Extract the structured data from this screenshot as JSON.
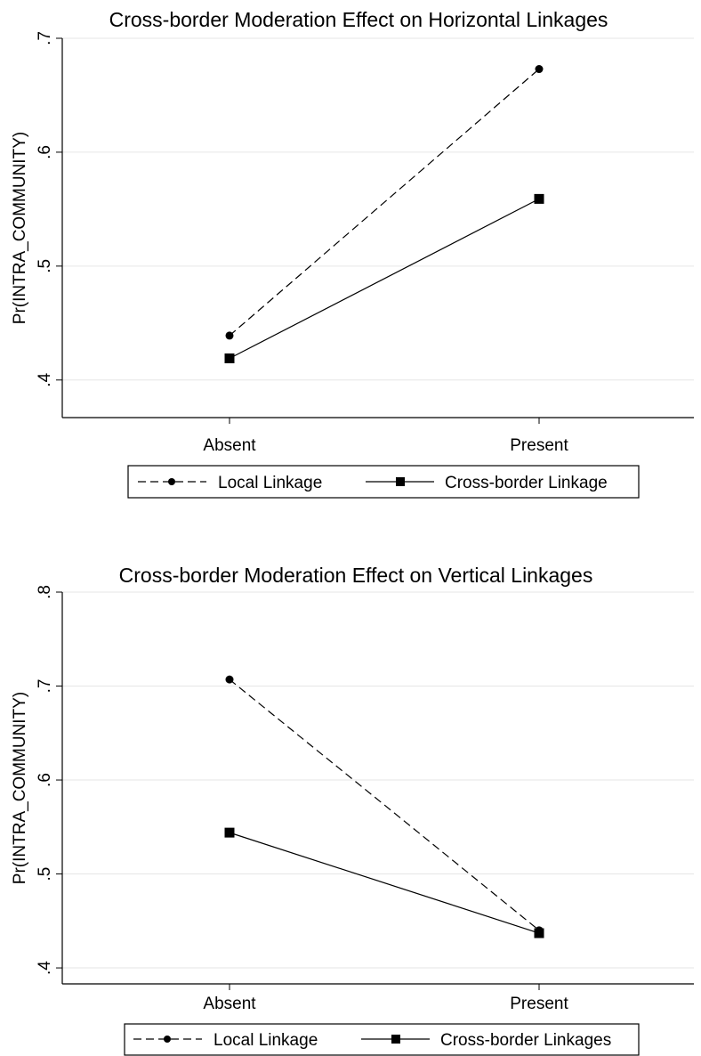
{
  "chart_data": [
    {
      "type": "line",
      "title": "Cross-border Moderation Effect on Horizontal Linkages",
      "xlabel": "",
      "ylabel": "Pr(INTRA_COMMUNITY)",
      "categories": [
        "Absent",
        "Present"
      ],
      "yticks": [
        ".4",
        ".5",
        ".6",
        ".7"
      ],
      "ytick_values": [
        0.4,
        0.5,
        0.6,
        0.7
      ],
      "ylim": [
        0.367,
        0.7
      ],
      "grid": true,
      "legend_position": "bottom",
      "series": [
        {
          "name": "Local Linkage",
          "values": [
            0.439,
            0.673
          ],
          "style": "dashed",
          "marker": "circle",
          "color": "#000000"
        },
        {
          "name": "Cross-border Linkage",
          "values": [
            0.419,
            0.559
          ],
          "style": "solid",
          "marker": "square",
          "color": "#000000"
        }
      ]
    },
    {
      "type": "line",
      "title": "Cross-border Moderation Effect on Vertical Linkages",
      "xlabel": "",
      "ylabel": "Pr(INTRA_COMMUNITY)",
      "categories": [
        "Absent",
        "Present"
      ],
      "yticks": [
        ".4",
        ".5",
        ".6",
        ".7",
        ".8"
      ],
      "ytick_values": [
        0.4,
        0.5,
        0.6,
        0.7,
        0.8
      ],
      "ylim": [
        0.383,
        0.8
      ],
      "grid": true,
      "legend_position": "bottom",
      "series": [
        {
          "name": "Local Linkage",
          "values": [
            0.707,
            0.44
          ],
          "style": "dashed",
          "marker": "circle",
          "color": "#000000"
        },
        {
          "name": "Cross-border Linkages",
          "values": [
            0.544,
            0.437
          ],
          "style": "solid",
          "marker": "square",
          "color": "#000000"
        }
      ]
    }
  ]
}
